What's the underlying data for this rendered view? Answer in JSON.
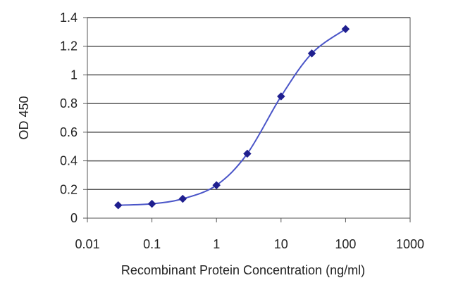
{
  "chart_data": {
    "type": "line",
    "title": "",
    "xlabel": "Recombinant Protein Concentration (ng/ml)",
    "ylabel": "OD 450",
    "xscale": "log",
    "xlim": [
      0.01,
      1000
    ],
    "ylim": [
      0,
      1.4
    ],
    "x_ticks": [
      0.01,
      0.1,
      1,
      10,
      100,
      1000
    ],
    "x_tick_labels": [
      "0.01",
      "0.1",
      "1",
      "10",
      "100",
      "1000"
    ],
    "y_ticks": [
      0,
      0.2,
      0.4,
      0.6,
      0.8,
      1,
      1.2,
      1.4
    ],
    "y_tick_labels": [
      "0",
      "0.2",
      "0.4",
      "0.6",
      "0.8",
      "1",
      "1.2",
      "1.4"
    ],
    "grid": "horizontal",
    "legend": "none",
    "series": [
      {
        "x": [
          0.03,
          0.1,
          0.3,
          1,
          3,
          10,
          30,
          100
        ],
        "y": [
          0.09,
          0.1,
          0.135,
          0.23,
          0.45,
          0.85,
          1.15,
          1.32
        ],
        "color": "#1f1f8f",
        "line_color": "#4a55c8",
        "marker": "diamond"
      }
    ]
  }
}
